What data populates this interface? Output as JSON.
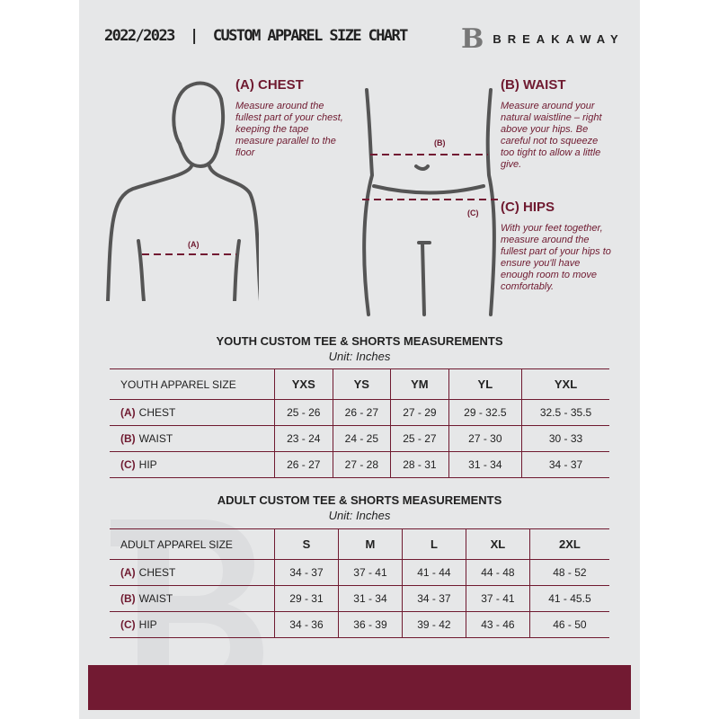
{
  "header": {
    "title": "2022/2023  |  CUSTOM APPAREL SIZE CHART",
    "brand": "BREAKAWAY",
    "logo_letter": "B"
  },
  "colors": {
    "accent": "#721a32",
    "background": "#e6e7e8"
  },
  "chest": {
    "title": "(A) CHEST",
    "desc": "Measure around the fullest part of your chest, keeping the tape measure parallel to the floor",
    "marker": "(A)"
  },
  "waist": {
    "title": "(B) WAIST",
    "desc": "Measure around your natural waistline – right above your hips. Be careful not to squeeze too tight to allow a little give.",
    "marker": "(B)"
  },
  "hips": {
    "title": "(C) HIPS",
    "desc": "With your feet together, measure around the fullest part of your hips to ensure you'll have enough room to move comfortably.",
    "marker": "(C)"
  },
  "youth": {
    "title": "YOUTH CUSTOM TEE & SHORTS MEASUREMENTS",
    "unit": "Unit: Inches",
    "size_label": "YOUTH APPAREL SIZE",
    "sizes": [
      "YXS",
      "YS",
      "YM",
      "YL",
      "YXL"
    ],
    "rows": [
      {
        "letter": "(A)",
        "name": "CHEST",
        "values": [
          "25 - 26",
          "26 - 27",
          "27 - 29",
          "29 - 32.5",
          "32.5 - 35.5"
        ]
      },
      {
        "letter": "(B)",
        "name": "WAIST",
        "values": [
          "23 - 24",
          "24 - 25",
          "25 - 27",
          "27 - 30",
          "30 - 33"
        ]
      },
      {
        "letter": "(C)",
        "name": "HIP",
        "values": [
          "26 - 27",
          "27 - 28",
          "28 - 31",
          "31 - 34",
          "34 - 37"
        ]
      }
    ]
  },
  "adult": {
    "title": "ADULT CUSTOM TEE & SHORTS MEASUREMENTS",
    "unit": "Unit: Inches",
    "size_label": "ADULT APPAREL SIZE",
    "sizes": [
      "S",
      "M",
      "L",
      "XL",
      "2XL"
    ],
    "rows": [
      {
        "letter": "(A)",
        "name": "CHEST",
        "values": [
          "34 - 37",
          "37 - 41",
          "41 - 44",
          "44 - 48",
          "48 - 52"
        ]
      },
      {
        "letter": "(B)",
        "name": "WAIST",
        "values": [
          "29 - 31",
          "31 - 34",
          "34 - 37",
          "37 - 41",
          "41 - 45.5"
        ]
      },
      {
        "letter": "(C)",
        "name": "HIP",
        "values": [
          "34 - 36",
          "36 - 39",
          "39 - 42",
          "43 - 46",
          "46 - 50"
        ]
      }
    ]
  }
}
